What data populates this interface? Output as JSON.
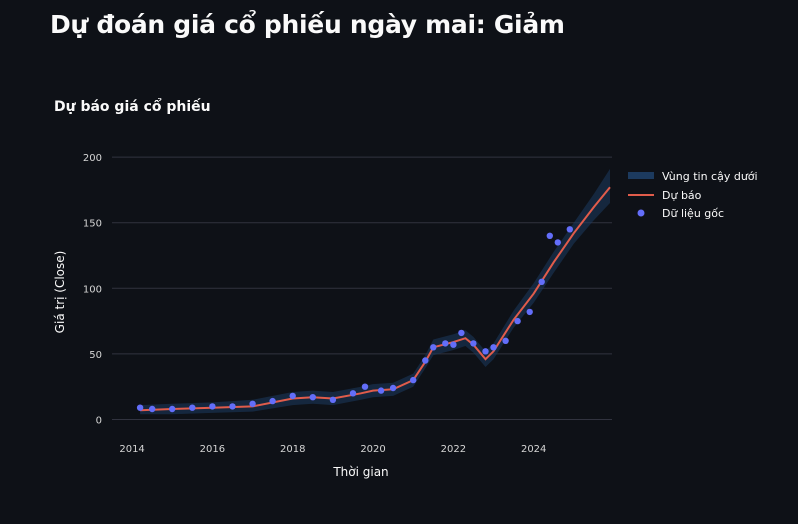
{
  "page": {
    "title": "Dự đoán giá cổ phiếu ngày mai: Giảm"
  },
  "chart_data": {
    "type": "line",
    "title": "Dự báo giá cổ phiếu",
    "xlabel": "Thời gian",
    "ylabel": "Giá trị (Close)",
    "xlim": [
      2013.5,
      2025.95
    ],
    "ylim": [
      -8,
      210
    ],
    "x_ticks": [
      2014,
      2016,
      2018,
      2020,
      2022,
      2024
    ],
    "y_ticks": [
      0,
      50,
      100,
      150,
      200
    ],
    "grid": true,
    "legend_position": "top-right",
    "colors": {
      "background": "#0e1117",
      "grid": "#31333f",
      "band": "#1c3a5e",
      "forecast": "#e05c4b",
      "points": "#636efa",
      "text": "#fafafa",
      "tick": "#d5d5d5"
    },
    "series": [
      {
        "name": "Vùng tin cậy dưới",
        "kind": "band",
        "x": [
          2014.2,
          2015.0,
          2016.0,
          2017.0,
          2018.0,
          2018.5,
          2019.0,
          2019.7,
          2020.0,
          2020.5,
          2021.0,
          2021.3,
          2021.5,
          2022.0,
          2022.3,
          2022.5,
          2022.8,
          2023.0,
          2023.5,
          2024.0,
          2024.5,
          2025.0,
          2025.5,
          2025.9
        ],
        "lower": [
          4,
          4,
          5,
          6,
          11,
          12,
          11,
          15,
          17,
          18,
          25,
          39,
          49,
          53,
          56,
          51,
          40,
          46,
          70,
          89,
          112,
          134,
          152,
          165
        ],
        "upper": [
          11,
          12,
          13,
          15,
          21,
          22,
          21,
          25,
          27,
          28,
          35,
          49,
          61,
          65,
          68,
          63,
          52,
          58,
          83,
          104,
          128,
          150,
          172,
          191
        ]
      },
      {
        "name": "Dự báo",
        "kind": "line",
        "x": [
          2014.2,
          2015.0,
          2016.0,
          2017.0,
          2018.0,
          2018.5,
          2019.0,
          2019.7,
          2020.0,
          2020.5,
          2021.0,
          2021.3,
          2021.5,
          2022.0,
          2022.3,
          2022.5,
          2022.8,
          2023.0,
          2023.5,
          2024.0,
          2024.5,
          2025.0,
          2025.5,
          2025.9
        ],
        "y": [
          7,
          8,
          9,
          10,
          16,
          17,
          16,
          20,
          22,
          23,
          30,
          44,
          55,
          59,
          62,
          57,
          46,
          52,
          76,
          96,
          120,
          142,
          162,
          177
        ]
      },
      {
        "name": "Dữ liệu gốc",
        "kind": "scatter",
        "x": [
          2014.2,
          2014.5,
          2015.0,
          2015.5,
          2016.0,
          2016.5,
          2017.0,
          2017.5,
          2018.0,
          2018.5,
          2019.0,
          2019.5,
          2019.8,
          2020.2,
          2020.5,
          2021.0,
          2021.3,
          2021.5,
          2021.8,
          2022.0,
          2022.2,
          2022.5,
          2022.8,
          2023.0,
          2023.3,
          2023.6,
          2023.9,
          2024.2,
          2024.4,
          2024.6,
          2024.9
        ],
        "y": [
          9,
          8,
          8,
          9,
          10,
          10,
          12,
          14,
          18,
          17,
          15,
          20,
          25,
          22,
          24,
          30,
          45,
          55,
          58,
          57,
          66,
          58,
          52,
          55,
          60,
          75,
          82,
          105,
          140,
          135,
          145
        ]
      }
    ]
  }
}
